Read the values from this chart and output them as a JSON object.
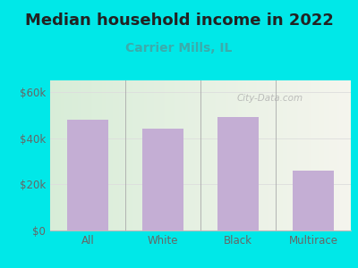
{
  "title": "Median household income in 2022",
  "subtitle": "Carrier Mills, IL",
  "categories": [
    "All",
    "White",
    "Black",
    "Multirace"
  ],
  "values": [
    48000,
    44000,
    49000,
    26000
  ],
  "bar_color": "#c4aed4",
  "title_fontsize": 13,
  "subtitle_fontsize": 10,
  "subtitle_color": "#3aacac",
  "tick_label_color": "#666666",
  "background_outer": "#00e8e8",
  "ylim": [
    0,
    65000
  ],
  "yticks": [
    0,
    20000,
    40000,
    60000
  ],
  "ytick_labels": [
    "$0",
    "$20k",
    "$40k",
    "$60k"
  ],
  "watermark": "City-Data.com",
  "grid_color": "#dddddd",
  "separator_color": "#aaaaaa"
}
